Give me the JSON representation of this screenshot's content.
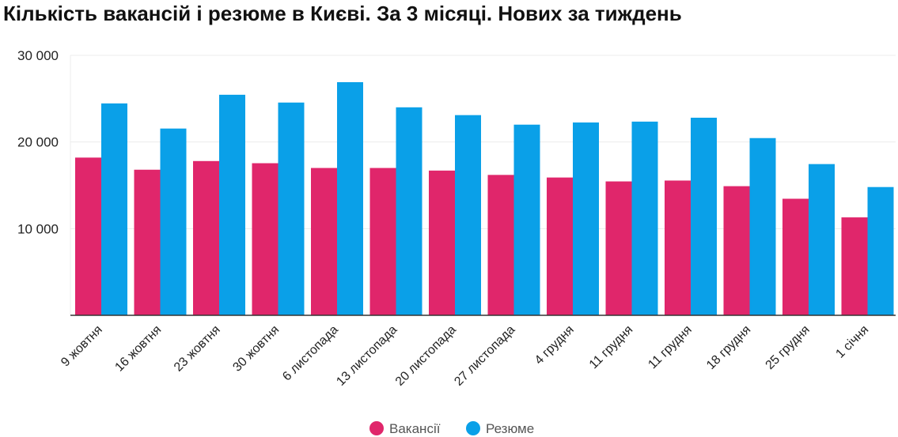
{
  "chart_data": {
    "type": "bar",
    "title": "Кількість вакансій і резюме в Києві. За 3 місяці. Нових за тиждень",
    "xlabel": "",
    "ylabel": "",
    "ylim": [
      0,
      30000
    ],
    "yticks": [
      10000,
      20000,
      30000
    ],
    "ytick_labels": [
      "10 000",
      "20 000",
      "30 000"
    ],
    "grid": true,
    "legend": "bottom",
    "categories": [
      "9 жовтня",
      "16 жовтня",
      "23 жовтня",
      "30 жовтня",
      "6 листопада",
      "13 листопада",
      "20 листопада",
      "27 листопада",
      "4 грудня",
      "11 грудня",
      "11 грудня",
      "18 грудня",
      "25 грудня",
      "1 січня"
    ],
    "series": [
      {
        "name": "Вакансії",
        "color": "#e0266b",
        "values": [
          18200,
          16800,
          17800,
          17550,
          17000,
          17000,
          16700,
          16200,
          15900,
          15450,
          15550,
          14900,
          13450,
          11300
        ]
      },
      {
        "name": "Резюме",
        "color": "#0aa0e8",
        "values": [
          24450,
          21550,
          25450,
          24550,
          26900,
          24000,
          23100,
          22000,
          22250,
          22350,
          22800,
          20450,
          17450,
          14800
        ]
      }
    ]
  }
}
